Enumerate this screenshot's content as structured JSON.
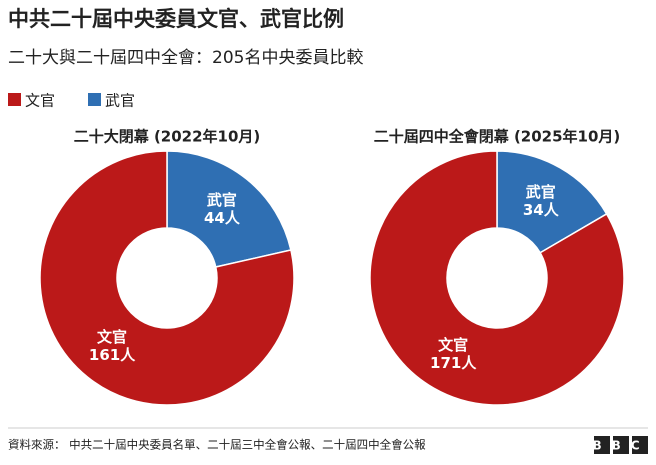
{
  "header": {
    "title": "中共二十屆中央委員文官、武官比例",
    "subtitle": "二十大與二十屆四中全會：205名中央委員比較"
  },
  "chart_data": [
    {
      "type": "pie",
      "title": "二十大閉幕 (2022年10月)",
      "categories": [
        "文官",
        "武官"
      ],
      "values": [
        161,
        44
      ],
      "value_labels": [
        "161人",
        "44人"
      ],
      "colors": [
        "#bb1919",
        "#2f6fb3"
      ]
    },
    {
      "type": "pie",
      "title": "二十屆四中全會閉幕 (2025年10月)",
      "categories": [
        "文官",
        "武官"
      ],
      "values": [
        171,
        34
      ],
      "value_labels": [
        "171人",
        "34人"
      ],
      "colors": [
        "#bb1919",
        "#2f6fb3"
      ]
    }
  ],
  "footer": {
    "source": "資料來源：  中共二十屆中央委員名單、二十屆三中全會公報、二十屆四中全會公報",
    "logo": "BBC"
  }
}
